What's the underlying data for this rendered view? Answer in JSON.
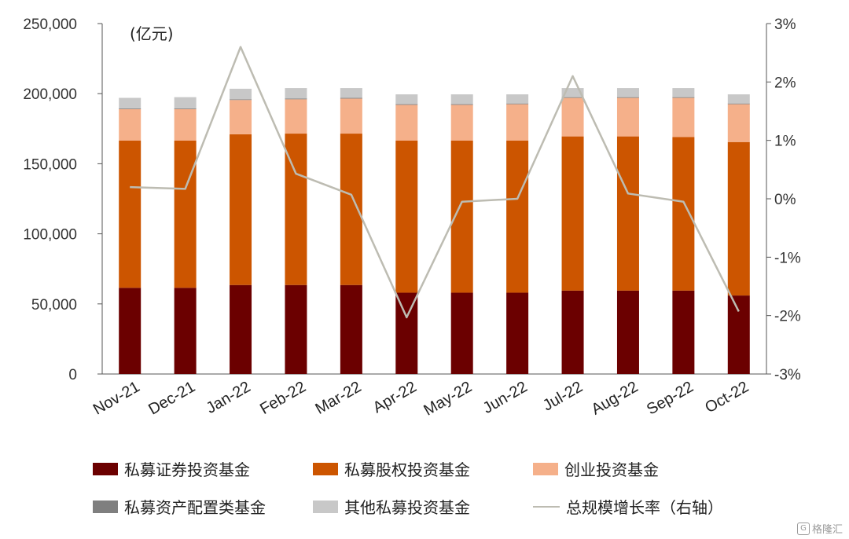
{
  "chart_data": {
    "type": "bar",
    "stacked": true,
    "unit_label": "(亿元)",
    "categories": [
      "Nov-21",
      "Dec-21",
      "Jan-22",
      "Feb-22",
      "Mar-22",
      "Apr-22",
      "May-22",
      "Jun-22",
      "Jul-22",
      "Aug-22",
      "Sep-22",
      "Oct-22"
    ],
    "series": [
      {
        "name": "私募证券投资基金",
        "color": "#6b0000",
        "values": [
          61500,
          61500,
          63500,
          63500,
          63500,
          58000,
          58000,
          58000,
          59500,
          59500,
          59500,
          56000
        ]
      },
      {
        "name": "私募股权投资基金",
        "color": "#cc5500",
        "values": [
          105000,
          105000,
          107500,
          108000,
          108000,
          108500,
          108500,
          108500,
          110000,
          110000,
          109500,
          109500
        ]
      },
      {
        "name": "创业投资基金",
        "color": "#f5b08a",
        "values": [
          22500,
          22500,
          24500,
          24500,
          25000,
          25500,
          25500,
          26000,
          27500,
          27500,
          28000,
          27000
        ]
      },
      {
        "name": "私募资产配置类基金",
        "color": "#7f7f7f",
        "values": [
          500,
          500,
          500,
          500,
          500,
          500,
          500,
          500,
          500,
          500,
          500,
          500
        ]
      },
      {
        "name": "其他私募投资基金",
        "color": "#c8c8c8",
        "values": [
          7500,
          8000,
          7500,
          7500,
          7000,
          7000,
          7000,
          6500,
          6500,
          6500,
          6500,
          6500
        ]
      }
    ],
    "line_series": {
      "name": "总规模增长率（右轴）",
      "color": "#bdbcb2",
      "axis": "right",
      "values": [
        0.2,
        0.17,
        2.6,
        0.43,
        0.07,
        -2.03,
        -0.05,
        0.0,
        2.1,
        0.09,
        -0.05,
        -1.93
      ]
    },
    "y_left": {
      "ticks": [
        "0",
        "50,000",
        "100,000",
        "150,000",
        "200,000",
        "250,000"
      ],
      "min": 0,
      "max": 250000
    },
    "y_right": {
      "ticks": [
        "-3%",
        "-2%",
        "-1%",
        "0%",
        "1%",
        "2%",
        "3%"
      ],
      "min": -3,
      "max": 3
    },
    "legend_placement": "bottom",
    "grid": false
  },
  "watermark": {
    "icon": "G",
    "text": "格隆汇"
  }
}
